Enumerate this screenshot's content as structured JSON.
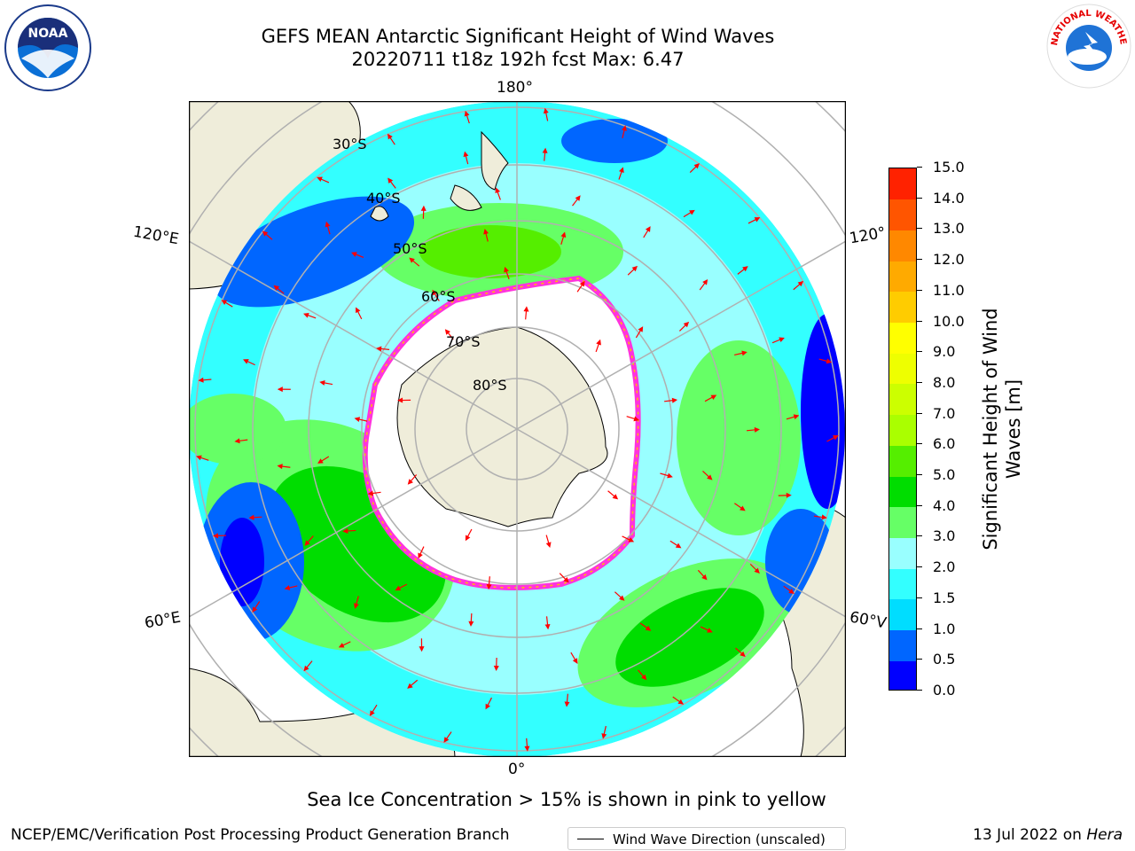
{
  "title": {
    "line1": "GEFS MEAN Antarctic Significant Height of Wind Waves",
    "line2": "20220711 t18z 192h fcst   Max: 6.47"
  },
  "map": {
    "projection": "south polar stereographic",
    "longitude_labels": {
      "top": "180°",
      "left_upper": "120°E",
      "right_upper": "120°",
      "left_lower": "60°E",
      "right_lower": "60°V",
      "bottom": "0°"
    },
    "latitude_labels": [
      "30°S",
      "40°S",
      "50°S",
      "60°S",
      "70°S",
      "80°S"
    ],
    "legend": "Wind Wave Direction (unscaled)",
    "colors": {
      "land": "#efedda",
      "ice_edge_pink": "#ff33dd",
      "ice_edge_yellow": "#ffc000",
      "arrow": "#ff0000",
      "grid": "#b0b0b0"
    }
  },
  "colorbar": {
    "label_line1": "Significant Height of Wind",
    "label_line2": "Waves [m]",
    "ticks": [
      "0.0",
      "0.5",
      "1.0",
      "1.5",
      "2.0",
      "3.0",
      "4.0",
      "5.0",
      "6.0",
      "7.0",
      "8.0",
      "9.0",
      "10.0",
      "11.0",
      "12.0",
      "13.0",
      "14.0",
      "15.0"
    ],
    "colors": [
      "#0000ff",
      "#0066ff",
      "#00ddff",
      "#33ffff",
      "#99ffff",
      "#66ff66",
      "#00dd00",
      "#55ee00",
      "#aaff00",
      "#ccff00",
      "#eeff00",
      "#ffff00",
      "#ffcc00",
      "#ffaa00",
      "#ff8800",
      "#ff5500",
      "#ff2200"
    ]
  },
  "footer": {
    "note": "Sea Ice Concentration > 15% is shown in pink to yellow",
    "credit": "NCEP/EMC/Verification Post Processing Product Generation Branch",
    "date_prefix": "13 Jul 2022 on ",
    "date_host": "Hera"
  },
  "logos": {
    "left": "NOAA",
    "right": "NATIONAL WEATHER SERVICE"
  }
}
